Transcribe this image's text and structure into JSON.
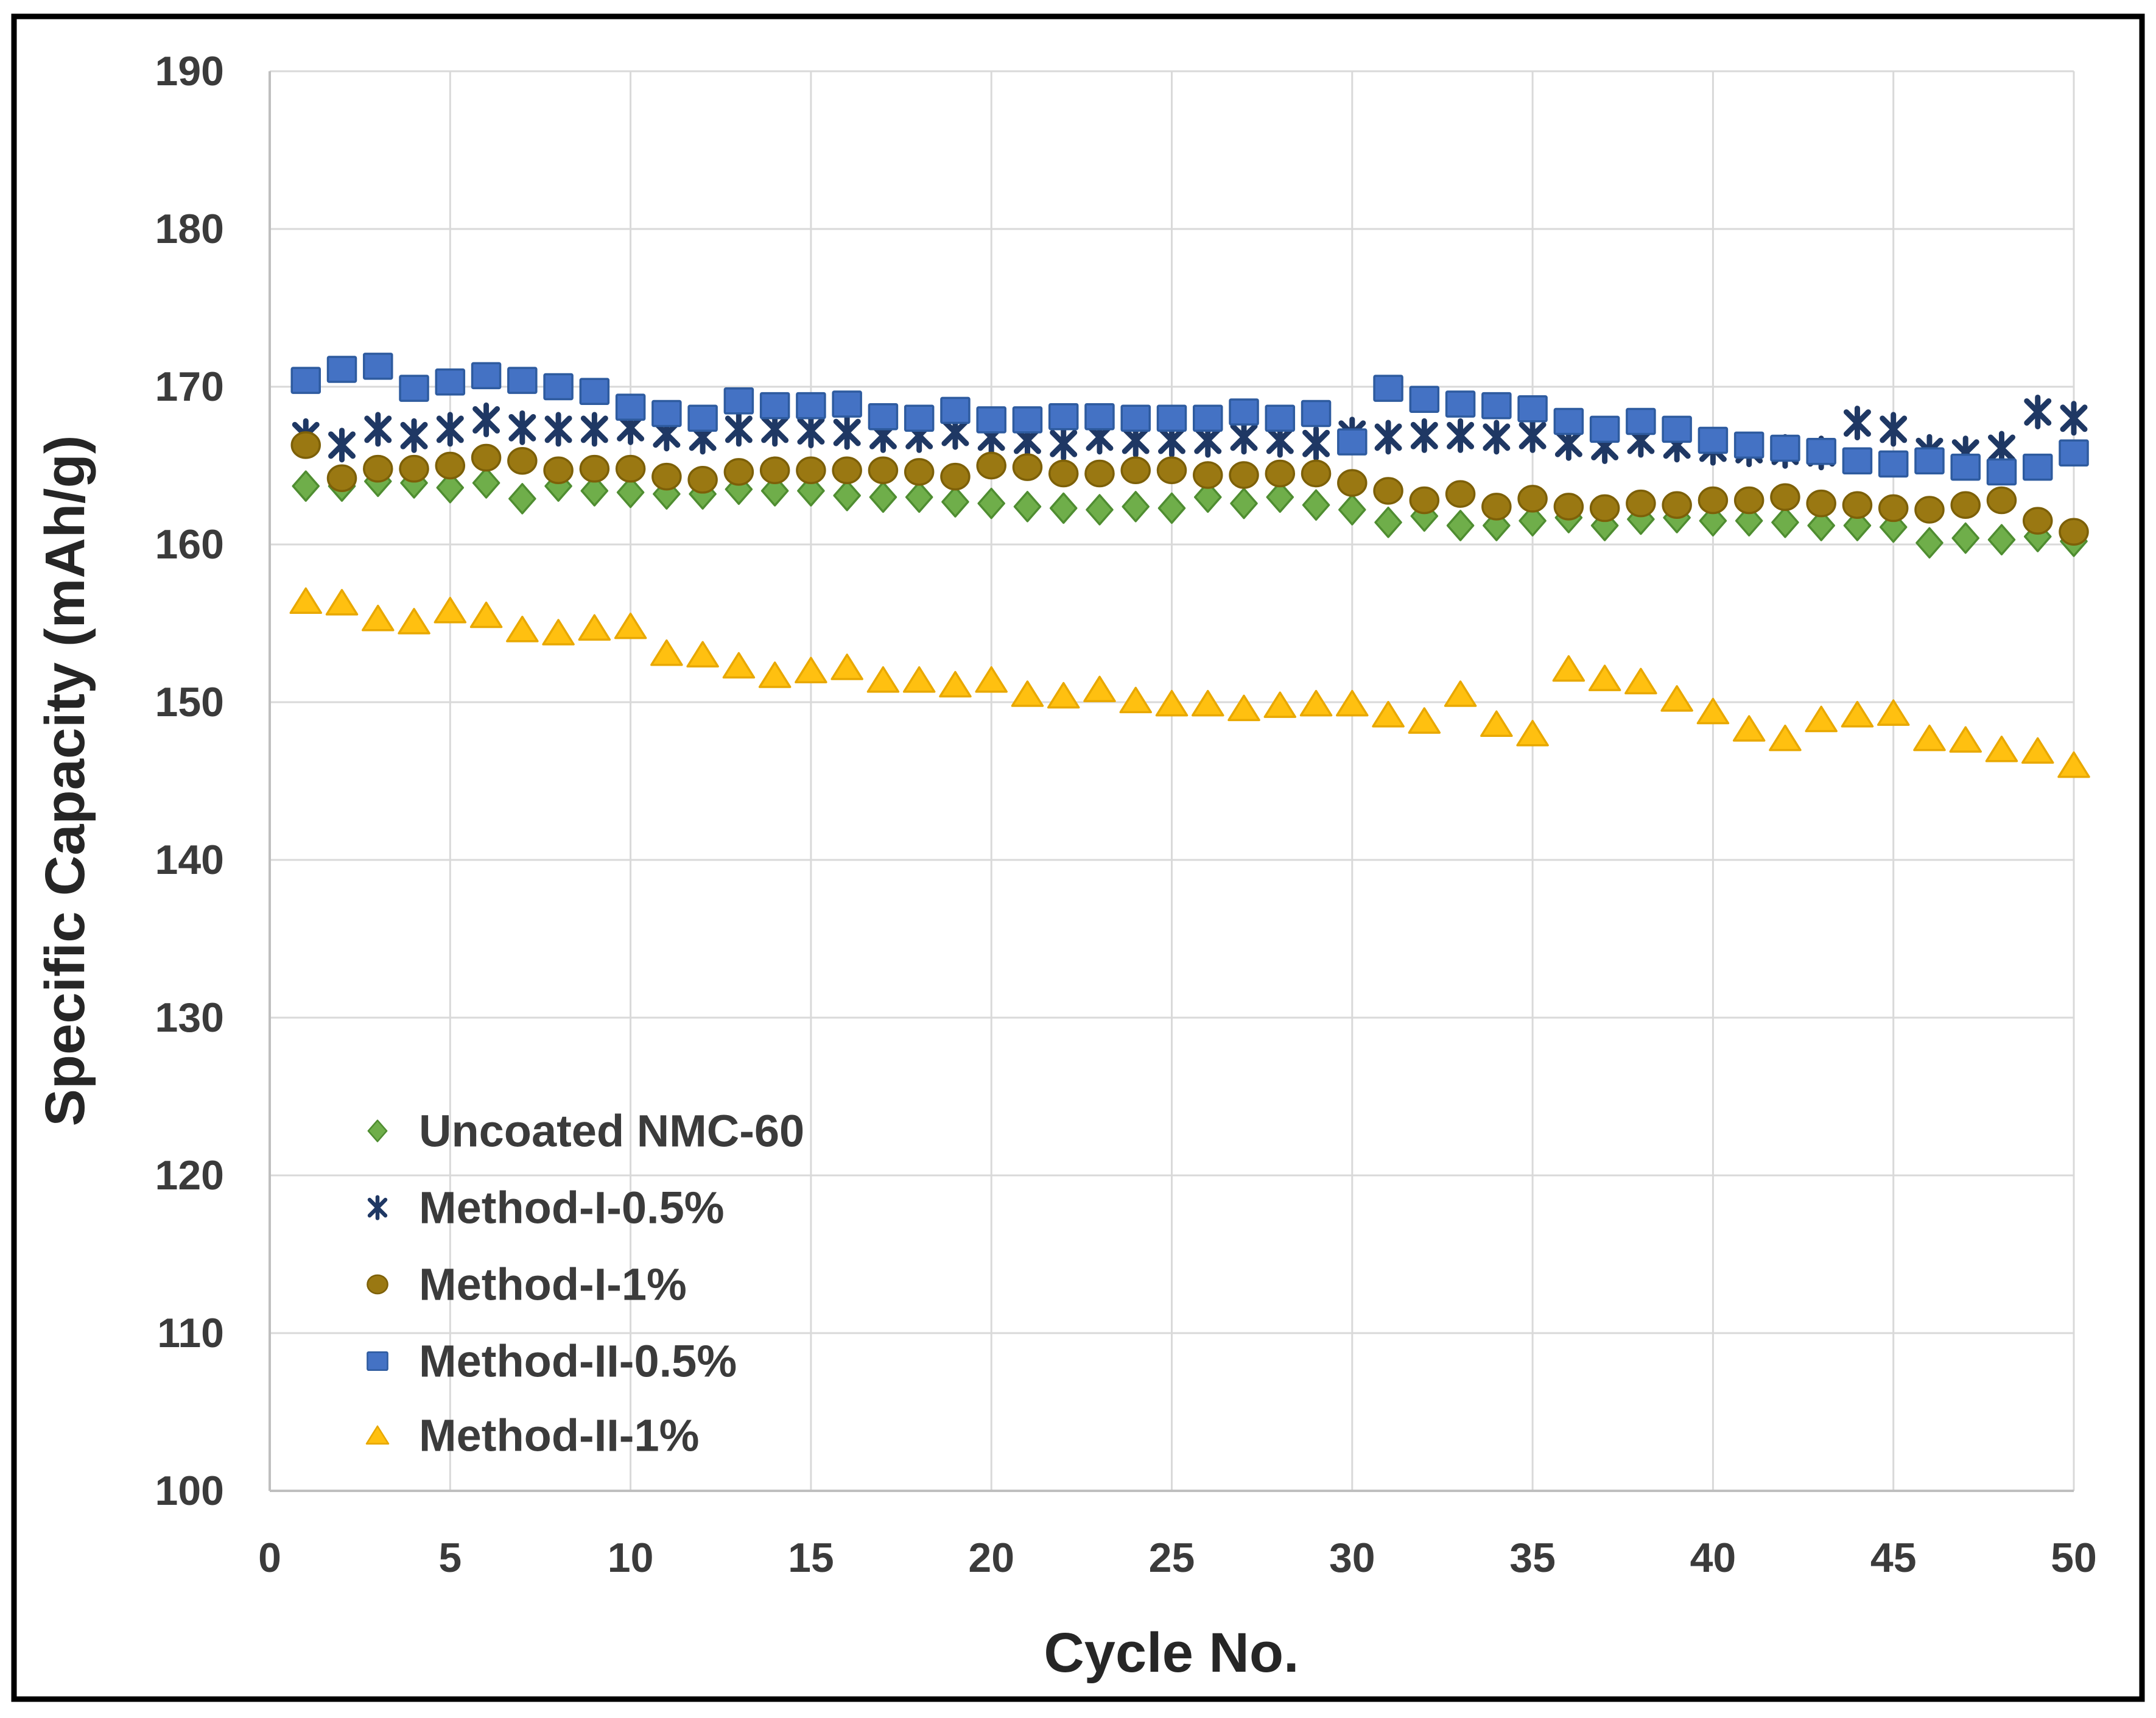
{
  "figure": {
    "frame_color": "#000000",
    "background_color": "#ffffff"
  },
  "chart_data": {
    "type": "scatter",
    "title": "",
    "xlabel": "Cycle No.",
    "ylabel": "Specific Capacity (mAh/g)",
    "xlim": [
      0,
      50
    ],
    "ylim": [
      100,
      190
    ],
    "x_ticks": [
      0,
      5,
      10,
      15,
      20,
      25,
      30,
      35,
      40,
      45,
      50
    ],
    "y_ticks": [
      100,
      110,
      120,
      130,
      140,
      150,
      160,
      170,
      180,
      190
    ],
    "grid": true,
    "legend_position": "inside-lower-left",
    "x": [
      1,
      2,
      3,
      4,
      5,
      6,
      7,
      8,
      9,
      10,
      11,
      12,
      13,
      14,
      15,
      16,
      17,
      18,
      19,
      20,
      21,
      22,
      23,
      24,
      25,
      26,
      27,
      28,
      29,
      30,
      31,
      32,
      33,
      34,
      35,
      36,
      37,
      38,
      39,
      40,
      41,
      42,
      43,
      44,
      45,
      46,
      47,
      48,
      49,
      50
    ],
    "series": [
      {
        "name": "Uncoated NMC-60",
        "marker": "diamond",
        "fill": "#6fae4a",
        "stroke": "#4f8d31",
        "values": [
          163.7,
          163.7,
          164.0,
          163.9,
          163.6,
          163.9,
          162.9,
          163.7,
          163.4,
          163.3,
          163.2,
          163.2,
          163.5,
          163.4,
          163.4,
          163.1,
          163.0,
          163.0,
          162.7,
          162.6,
          162.4,
          162.3,
          162.2,
          162.4,
          162.3,
          163.0,
          162.6,
          163.0,
          162.5,
          162.2,
          161.4,
          161.8,
          161.2,
          161.2,
          161.5,
          161.7,
          161.2,
          161.6,
          161.7,
          161.5,
          161.5,
          161.4,
          161.2,
          161.2,
          161.1,
          160.1,
          160.4,
          160.3,
          160.5,
          160.2
        ]
      },
      {
        "name": "Method-I-0.5%",
        "marker": "asterisk",
        "fill": "#1f3864",
        "stroke": "#1f3864",
        "values": [
          166.9,
          166.3,
          167.3,
          166.9,
          167.3,
          167.9,
          167.4,
          167.3,
          167.3,
          167.4,
          167.0,
          166.8,
          167.3,
          167.3,
          167.2,
          167.1,
          166.9,
          166.9,
          167.1,
          166.8,
          166.6,
          166.4,
          166.8,
          166.6,
          166.6,
          166.6,
          166.8,
          166.6,
          166.4,
          167.0,
          166.8,
          166.9,
          166.9,
          166.8,
          166.9,
          166.4,
          166.2,
          166.6,
          166.3,
          166.1,
          166.0,
          165.9,
          165.8,
          167.7,
          167.3,
          165.9,
          165.8,
          166.1,
          168.4,
          168.0
        ]
      },
      {
        "name": "Method-I-1%",
        "marker": "circle",
        "fill": "#9a7812",
        "stroke": "#7d6008",
        "values": [
          166.3,
          164.2,
          164.8,
          164.8,
          165.0,
          165.5,
          165.3,
          164.7,
          164.8,
          164.8,
          164.3,
          164.1,
          164.6,
          164.7,
          164.7,
          164.7,
          164.7,
          164.6,
          164.3,
          165.0,
          164.9,
          164.5,
          164.5,
          164.7,
          164.7,
          164.4,
          164.4,
          164.5,
          164.5,
          163.9,
          163.4,
          162.8,
          163.2,
          162.4,
          162.9,
          162.4,
          162.3,
          162.6,
          162.5,
          162.8,
          162.8,
          163.0,
          162.6,
          162.5,
          162.3,
          162.2,
          162.5,
          162.8,
          161.5,
          160.8
        ]
      },
      {
        "name": "Method-II-0.5%",
        "marker": "square",
        "fill": "#4472c4",
        "stroke": "#2e5b9f",
        "values": [
          170.4,
          171.1,
          171.3,
          169.9,
          170.3,
          170.7,
          170.4,
          170.0,
          169.7,
          168.7,
          168.3,
          168.0,
          169.1,
          168.8,
          168.8,
          168.9,
          168.1,
          168.0,
          168.5,
          167.9,
          167.9,
          168.1,
          168.1,
          168.0,
          168.0,
          168.0,
          168.4,
          168.0,
          168.3,
          166.5,
          169.9,
          169.2,
          168.9,
          168.8,
          168.6,
          167.8,
          167.3,
          167.8,
          167.3,
          166.6,
          166.3,
          166.1,
          165.9,
          165.3,
          165.1,
          165.3,
          164.9,
          164.6,
          164.9,
          165.8
        ]
      },
      {
        "name": "Method-II-1%",
        "marker": "triangle",
        "fill": "#ffc010",
        "stroke": "#e8a800",
        "values": [
          156.4,
          156.3,
          155.3,
          155.1,
          155.8,
          155.5,
          154.6,
          154.4,
          154.7,
          154.8,
          153.1,
          153.0,
          152.3,
          151.7,
          152.0,
          152.2,
          151.4,
          151.4,
          151.1,
          151.4,
          150.5,
          150.4,
          150.8,
          150.1,
          149.9,
          149.9,
          149.6,
          149.8,
          149.9,
          149.9,
          149.2,
          148.8,
          150.5,
          148.6,
          148.0,
          152.1,
          151.5,
          151.3,
          150.2,
          149.4,
          148.3,
          147.7,
          148.9,
          149.2,
          149.3,
          147.7,
          147.6,
          147.0,
          146.9,
          146.0
        ]
      }
    ],
    "colors": {
      "gridline": "#d9d9d9",
      "axis_line": "#bfbfbf",
      "tick_text": "#3b3b3b",
      "title_text": "#262626"
    }
  }
}
